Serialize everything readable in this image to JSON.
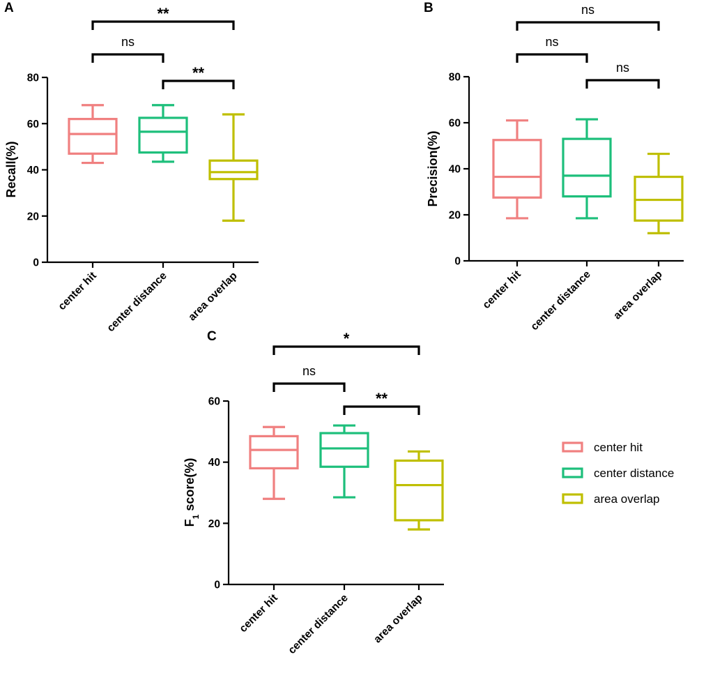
{
  "chart_data": [
    {
      "panel": "A",
      "type": "box",
      "ylabel": "Recall(%)",
      "ylim": [
        0,
        80
      ],
      "yticks": [
        0,
        20,
        40,
        60,
        80
      ],
      "categories": [
        "center hit",
        "center distance",
        "area overlap"
      ],
      "series": [
        {
          "name": "center hit",
          "color": "#f08080",
          "min": 43,
          "q1": 47,
          "median": 55.5,
          "q3": 62,
          "max": 68
        },
        {
          "name": "center distance",
          "color": "#1dbf7b",
          "min": 43.5,
          "q1": 47.5,
          "median": 56.5,
          "q3": 62.5,
          "max": 68
        },
        {
          "name": "area overlap",
          "color": "#bfbf00",
          "min": 18,
          "q1": 36,
          "median": 39,
          "q3": 44,
          "max": 64
        }
      ],
      "comparisons": [
        {
          "from": 0,
          "to": 1,
          "label": "ns"
        },
        {
          "from": 1,
          "to": 2,
          "label": "**"
        },
        {
          "from": 0,
          "to": 2,
          "label": "**"
        }
      ]
    },
    {
      "panel": "B",
      "type": "box",
      "ylabel": "Precision(%)",
      "ylim": [
        0,
        80
      ],
      "yticks": [
        0,
        20,
        40,
        60,
        80
      ],
      "categories": [
        "center hit",
        "center distance",
        "area overlap"
      ],
      "series": [
        {
          "name": "center hit",
          "color": "#f08080",
          "min": 18.5,
          "q1": 27.5,
          "median": 36.5,
          "q3": 52.5,
          "max": 61
        },
        {
          "name": "center distance",
          "color": "#1dbf7b",
          "min": 18.5,
          "q1": 28,
          "median": 37,
          "q3": 53,
          "max": 61.5
        },
        {
          "name": "area overlap",
          "color": "#bfbf00",
          "min": 12,
          "q1": 17.5,
          "median": 26.5,
          "q3": 36.5,
          "max": 46.5
        }
      ],
      "comparisons": [
        {
          "from": 0,
          "to": 1,
          "label": "ns"
        },
        {
          "from": 1,
          "to": 2,
          "label": "ns"
        },
        {
          "from": 0,
          "to": 2,
          "label": "ns"
        }
      ]
    },
    {
      "panel": "C",
      "type": "box",
      "ylabel": "F1 score(%)",
      "ylim": [
        0,
        60
      ],
      "yticks": [
        0,
        20,
        40,
        60
      ],
      "categories": [
        "center hit",
        "center distance",
        "area overlap"
      ],
      "series": [
        {
          "name": "center hit",
          "color": "#f08080",
          "min": 28,
          "q1": 38,
          "median": 44,
          "q3": 48.5,
          "max": 51.5
        },
        {
          "name": "center distance",
          "color": "#1dbf7b",
          "min": 28.5,
          "q1": 38.5,
          "median": 44.5,
          "q3": 49.5,
          "max": 52
        },
        {
          "name": "area overlap",
          "color": "#bfbf00",
          "min": 18,
          "q1": 21,
          "median": 32.5,
          "q3": 40.5,
          "max": 43.5
        }
      ],
      "comparisons": [
        {
          "from": 0,
          "to": 1,
          "label": "ns"
        },
        {
          "from": 1,
          "to": 2,
          "label": "**"
        },
        {
          "from": 0,
          "to": 2,
          "label": "*"
        }
      ]
    }
  ],
  "legend": {
    "placement": "right",
    "items": [
      {
        "label": "center hit",
        "color": "#f08080"
      },
      {
        "label": "center distance",
        "color": "#1dbf7b"
      },
      {
        "label": "area overlap",
        "color": "#bfbf00"
      }
    ]
  }
}
